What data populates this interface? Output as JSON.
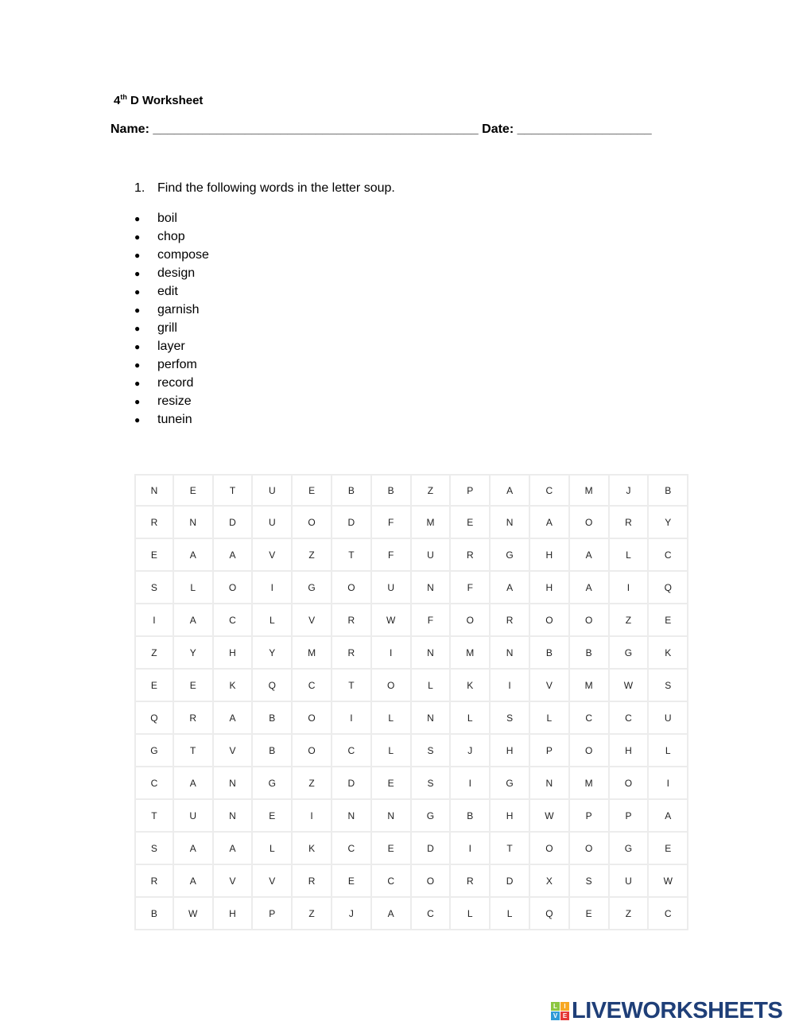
{
  "header": {
    "grade_number": "4",
    "grade_suffix": "th",
    "title_rest": " D  Worksheet",
    "name_label": "Name: ",
    "name_blank": "______________________________________________",
    "date_label": " Date: ",
    "date_blank": "___________________"
  },
  "instruction": {
    "number": "1.",
    "text": "Find the following words in the letter soup."
  },
  "words": [
    "boil",
    "chop",
    "compose",
    "design",
    "edit",
    "garnish",
    "grill",
    "layer",
    "perfom",
    "record",
    "resize",
    "tunein"
  ],
  "grid": [
    "NETUEBBZPACMJB",
    "RNDUODFMENAORY",
    "EAAVZTFURGHALC",
    "SLOIGOUNFAHAIQ",
    "IACLVRWFOROOZE",
    "ZYHYMRINMNBBGK",
    "EEKQCTOLKIVMWS",
    "QRABOILNLSLCCU",
    "GTVBOCLSJHPOHL",
    "CANGZDESIGNMOI",
    "TUNEINNGBHWPPA",
    "SAALKCEDITOOGE",
    "RAVVRECORDXSUW",
    "BWHPZJACLLQEZC"
  ],
  "logo": {
    "tiles": [
      "L",
      "I",
      "V",
      "E"
    ],
    "tile_colors": [
      "#8dc63f",
      "#f7a823",
      "#2e9ad6",
      "#e53935"
    ],
    "text": "LIVEWORKSHEETS",
    "color": "#1f3f78"
  }
}
